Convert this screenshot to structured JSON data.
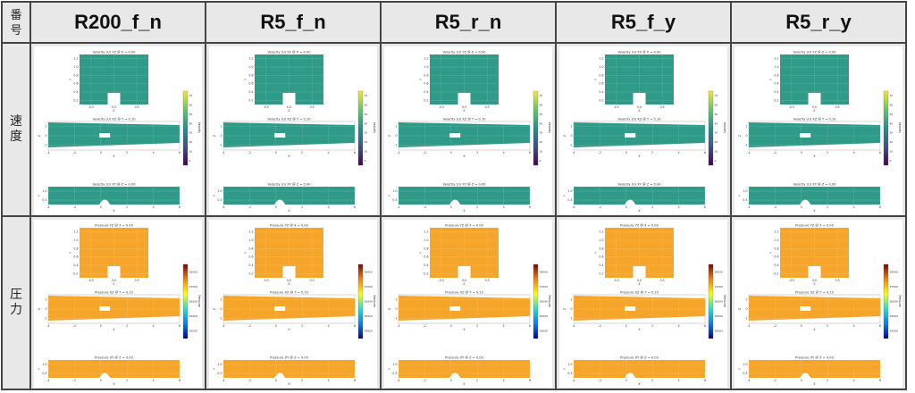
{
  "header": {
    "corner": [
      "番",
      "号"
    ],
    "columns": [
      "R200_f_n",
      "R5_f_n",
      "R5_r_n",
      "R5_f_y",
      "R5_r_y"
    ]
  },
  "rows": [
    {
      "label": [
        "速",
        "度"
      ],
      "kind": "velocity",
      "titles": [
        "Velocity (U) YZ @ X = 0.00",
        "Velocity (U) XZ @ Y = 0.10",
        "Velocity (U) XY @ Z = 0.00"
      ],
      "colorbar_label": "Velocity",
      "colorbar_ticks": [
        "0",
        "10",
        "20",
        "30",
        "40",
        "50",
        "60",
        "70"
      ],
      "field_color": "#2f9a87",
      "colormap": [
        "#440154",
        "#3b528b",
        "#21918c",
        "#5ec962",
        "#fde725"
      ]
    },
    {
      "label": [
        "圧",
        "力"
      ],
      "kind": "pressure",
      "titles": [
        "Pressure YZ @ X = 0.00",
        "Pressure XZ @ Y = 0.10",
        "Pressure XY @ Z = 0.00"
      ],
      "colorbar_label": "Pressure",
      "colorbar_ticks": [
        "34000",
        "35000",
        "36000",
        "37000",
        "38000"
      ],
      "field_color": "#f5a52a",
      "colormap": [
        "#00008f",
        "#0080ff",
        "#20e0d0",
        "#ffff00",
        "#ff8000",
        "#800000"
      ]
    }
  ],
  "axes": {
    "yz_x_ticks": [
      "-0.5",
      "0.0",
      "0.5"
    ],
    "yz_y_ticks": [
      "0.2",
      "0.4",
      "0.6",
      "0.8",
      "1.0",
      "1.2"
    ],
    "yz_xlabel": "Z",
    "yz_ylabel": "Y",
    "xz_x_ticks": [
      "-4",
      "-2",
      "0",
      "2",
      "4",
      "6"
    ],
    "xz_y_ticks": [
      "-1",
      "0",
      "1"
    ],
    "xz_xlabel": "X",
    "xz_ylabel": "Z",
    "xy_x_ticks": [
      "-4",
      "-2",
      "0",
      "2",
      "4",
      "6"
    ],
    "xy_y_ticks": [
      "0.5",
      "1.0"
    ],
    "xy_xlabel": "X",
    "xy_ylabel": "Y"
  }
}
